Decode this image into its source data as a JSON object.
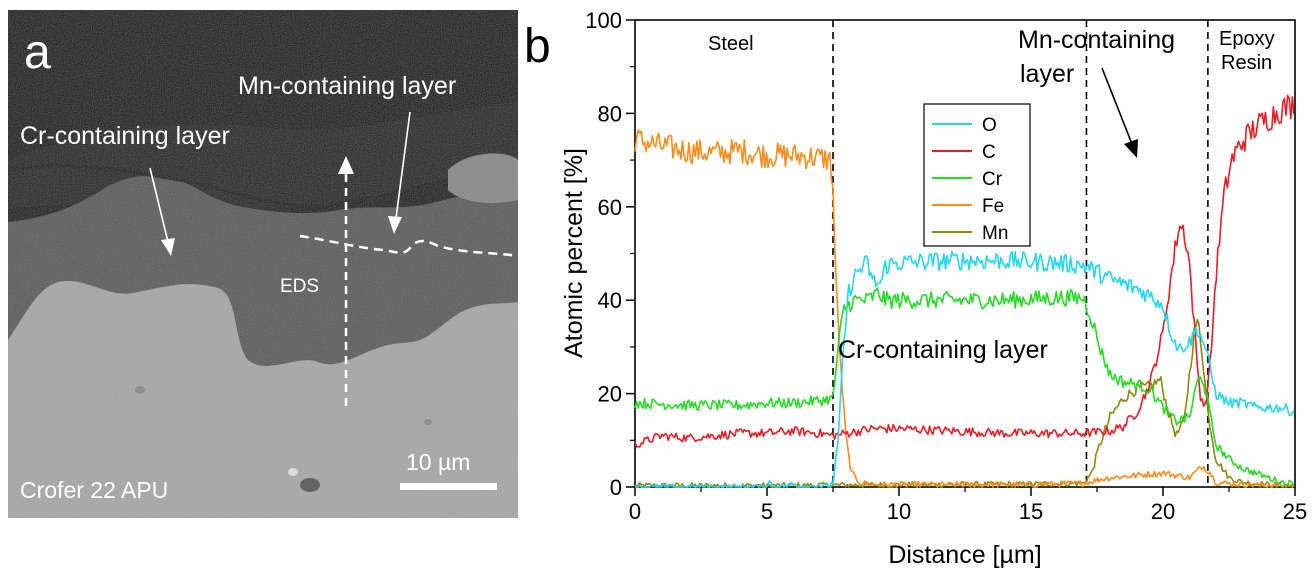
{
  "panel_a": {
    "label": "a",
    "annotations": {
      "cr_layer": "Cr-containing layer",
      "mn_layer": "Mn-containing layer",
      "eds": "EDS",
      "sample": "Crofer 22 APU",
      "scale_bar": "10 µm"
    },
    "colors": {
      "resin": "#101010",
      "oxide": "#5a5a5a",
      "steel": "#a6a6a6"
    }
  },
  "panel_b": {
    "label": "b",
    "region_labels": {
      "steel": "Steel",
      "mn_layer_1": "Mn-containing",
      "mn_layer_2": "layer",
      "epoxy_1": "Epoxy",
      "epoxy_2": "Resin",
      "cr_layer": "Cr-containing layer"
    }
  },
  "chart_data": {
    "type": "line",
    "title": "",
    "xlabel": "Distance [µm]",
    "ylabel": "Atomic percent [%]",
    "xlim": [
      0,
      25
    ],
    "ylim": [
      0,
      100
    ],
    "xticks": [
      0,
      5,
      10,
      15,
      20,
      25
    ],
    "yticks": [
      0,
      20,
      40,
      60,
      80,
      100
    ],
    "boundaries": [
      7.5,
      17.1,
      21.7
    ],
    "legend_position": "upper-center",
    "series": [
      {
        "name": "O",
        "color": "#22d8f0",
        "points": [
          [
            0,
            0
          ],
          [
            5.0,
            0
          ],
          [
            5.1,
            1
          ],
          [
            5.3,
            0
          ],
          [
            6.0,
            0.5
          ],
          [
            6.5,
            0
          ],
          [
            7.0,
            0.4
          ],
          [
            7.3,
            0
          ],
          [
            7.5,
            1
          ],
          [
            7.7,
            10
          ],
          [
            7.9,
            30
          ],
          [
            8.1,
            42
          ],
          [
            8.4,
            46
          ],
          [
            8.8,
            48
          ],
          [
            9.0,
            44
          ],
          [
            9.3,
            43.5
          ],
          [
            9.5,
            47.5
          ],
          [
            10,
            48
          ],
          [
            12,
            48.5
          ],
          [
            14,
            48.5
          ],
          [
            16,
            48
          ],
          [
            17,
            47.5
          ],
          [
            17.5,
            46
          ],
          [
            18,
            44.5
          ],
          [
            18.5,
            43.5
          ],
          [
            19,
            42.5
          ],
          [
            19.5,
            41
          ],
          [
            20,
            39
          ],
          [
            20.3,
            33
          ],
          [
            20.6,
            29.5
          ],
          [
            21,
            31
          ],
          [
            21.3,
            34
          ],
          [
            21.6,
            30
          ],
          [
            22,
            20
          ],
          [
            22.5,
            18
          ],
          [
            23,
            18
          ],
          [
            23.5,
            17
          ],
          [
            24,
            17
          ],
          [
            24.5,
            17
          ],
          [
            25,
            16
          ]
        ]
      },
      {
        "name": "C",
        "color": "#ea1c24",
        "points": [
          [
            0,
            9
          ],
          [
            1,
            11
          ],
          [
            2,
            10.5
          ],
          [
            3,
            11
          ],
          [
            4,
            11.5
          ],
          [
            5,
            11.5
          ],
          [
            6,
            12
          ],
          [
            7,
            11.5
          ],
          [
            7.5,
            11
          ],
          [
            8,
            11.5
          ],
          [
            9,
            12.5
          ],
          [
            10,
            12.5
          ],
          [
            12,
            12
          ],
          [
            14,
            11.5
          ],
          [
            16,
            11.5
          ],
          [
            17,
            11.5
          ],
          [
            18,
            12
          ],
          [
            18.5,
            13
          ],
          [
            19,
            16
          ],
          [
            19.5,
            22
          ],
          [
            20,
            33
          ],
          [
            20.3,
            45
          ],
          [
            20.6,
            56
          ],
          [
            20.8,
            55
          ],
          [
            21,
            48
          ],
          [
            21.2,
            33
          ],
          [
            21.4,
            20
          ],
          [
            21.6,
            17
          ],
          [
            21.8,
            27
          ],
          [
            22,
            45
          ],
          [
            22.3,
            62
          ],
          [
            22.6,
            70
          ],
          [
            23,
            74
          ],
          [
            23.5,
            77
          ],
          [
            24,
            79
          ],
          [
            24.5,
            81
          ],
          [
            25,
            82
          ]
        ]
      },
      {
        "name": "Cr",
        "color": "#22dd22",
        "points": [
          [
            0,
            18
          ],
          [
            2,
            17.5
          ],
          [
            4,
            17.5
          ],
          [
            5,
            18
          ],
          [
            6,
            18
          ],
          [
            7,
            18.5
          ],
          [
            7.5,
            19
          ],
          [
            7.7,
            30
          ],
          [
            7.9,
            38
          ],
          [
            8.3,
            40
          ],
          [
            8.8,
            40
          ],
          [
            9.2,
            41.5
          ],
          [
            9.5,
            40
          ],
          [
            12,
            40
          ],
          [
            14,
            40
          ],
          [
            16,
            40.5
          ],
          [
            17,
            40.5
          ],
          [
            17.3,
            36
          ],
          [
            17.6,
            30
          ],
          [
            18,
            24
          ],
          [
            18.5,
            22.5
          ],
          [
            19,
            22
          ],
          [
            19.5,
            21
          ],
          [
            20,
            17
          ],
          [
            20.5,
            14
          ],
          [
            21,
            15
          ],
          [
            21.3,
            22.5
          ],
          [
            21.5,
            23.5
          ],
          [
            21.7,
            18
          ],
          [
            22,
            9
          ],
          [
            22.5,
            6
          ],
          [
            23,
            4
          ],
          [
            23.5,
            3
          ],
          [
            24,
            2
          ],
          [
            24.5,
            1
          ],
          [
            25,
            0.7
          ]
        ]
      },
      {
        "name": "Fe",
        "color": "#ff8c1a",
        "points": [
          [
            0,
            74.5
          ],
          [
            1,
            73
          ],
          [
            2,
            72
          ],
          [
            3,
            71.5
          ],
          [
            4,
            72
          ],
          [
            5,
            71
          ],
          [
            6,
            71
          ],
          [
            7,
            70.5
          ],
          [
            7.4,
            70
          ],
          [
            7.5,
            64
          ],
          [
            7.6,
            45
          ],
          [
            7.8,
            25
          ],
          [
            8.0,
            10
          ],
          [
            8.2,
            3
          ],
          [
            8.5,
            1
          ],
          [
            9,
            0.5
          ],
          [
            12,
            0.5
          ],
          [
            15,
            0.5
          ],
          [
            17,
            0.8
          ],
          [
            17.5,
            1.5
          ],
          [
            18,
            2
          ],
          [
            19,
            2.5
          ],
          [
            20,
            3
          ],
          [
            20.5,
            2.5
          ],
          [
            21,
            2
          ],
          [
            21.5,
            4.5
          ],
          [
            21.8,
            3
          ],
          [
            22,
            1
          ],
          [
            23,
            0.5
          ],
          [
            25,
            0.3
          ]
        ]
      },
      {
        "name": "Mn",
        "color": "#8a8a10",
        "points": [
          [
            0,
            0.3
          ],
          [
            5,
            0.3
          ],
          [
            7.5,
            0.4
          ],
          [
            10,
            0.5
          ],
          [
            12,
            0.5
          ],
          [
            15,
            0.6
          ],
          [
            17,
            0.8
          ],
          [
            17.3,
            3
          ],
          [
            17.6,
            9
          ],
          [
            18,
            15
          ],
          [
            18.5,
            19
          ],
          [
            19,
            21
          ],
          [
            19.5,
            21.5
          ],
          [
            19.9,
            23
          ],
          [
            20.2,
            16
          ],
          [
            20.5,
            11
          ],
          [
            20.8,
            14
          ],
          [
            21,
            24
          ],
          [
            21.2,
            34
          ],
          [
            21.35,
            35
          ],
          [
            21.5,
            28
          ],
          [
            21.7,
            16
          ],
          [
            22,
            6
          ],
          [
            22.5,
            2
          ],
          [
            23,
            1
          ],
          [
            24,
            0.5
          ],
          [
            25,
            0.3
          ]
        ]
      }
    ]
  }
}
